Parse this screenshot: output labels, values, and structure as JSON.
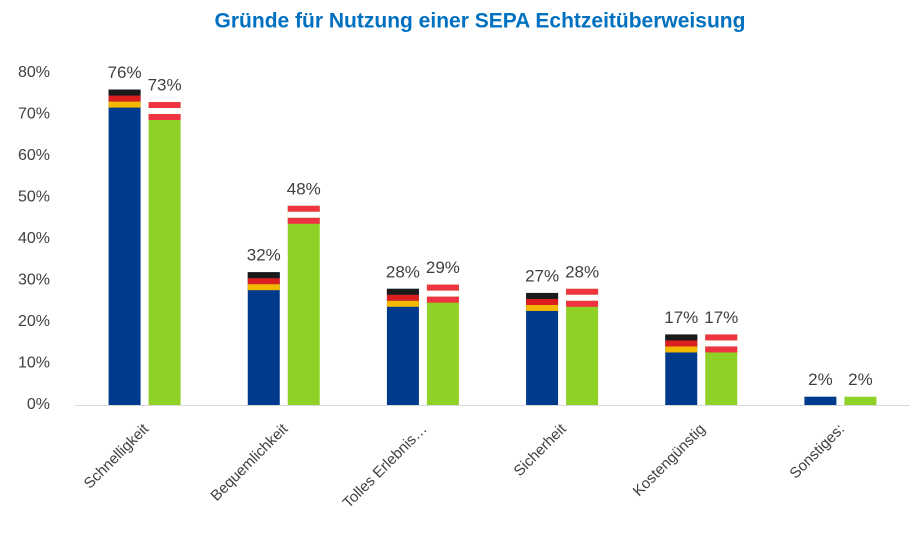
{
  "chart_data": {
    "type": "bar",
    "title": "Gründe für Nutzung einer SEPA Echtzeitüberweisung",
    "categories": [
      "Schnelligkeit",
      "Bequemlichkeit",
      "Tolles Erlebnis…",
      "Sicherheit",
      "Kostengünstig",
      "Sonstiges:"
    ],
    "series": [
      {
        "color": "#003a8c",
        "flag": [
          "#1a1a1a",
          "#dd1e1e",
          "#f5b800"
        ],
        "values": [
          76,
          32,
          28,
          27,
          17,
          2
        ],
        "value_labels": [
          "76%",
          "32%",
          "28%",
          "27%",
          "17%",
          "2%"
        ]
      },
      {
        "color": "#8fd126",
        "flag": [
          "#ef3340",
          "#ffffff",
          "#ef3340"
        ],
        "values": [
          73,
          48,
          29,
          28,
          17,
          2
        ],
        "value_labels": [
          "73%",
          "48%",
          "29%",
          "28%",
          "17%",
          "2%"
        ]
      }
    ],
    "ylim": [
      0,
      80
    ],
    "yticks": [
      {
        "value": 0,
        "label": "0%"
      },
      {
        "value": 10,
        "label": "10%"
      },
      {
        "value": 20,
        "label": "20%"
      },
      {
        "value": 30,
        "label": "30%"
      },
      {
        "value": 40,
        "label": "40%"
      },
      {
        "value": 50,
        "label": "50%"
      },
      {
        "value": 60,
        "label": "60%"
      },
      {
        "value": 70,
        "label": "70%"
      },
      {
        "value": 80,
        "label": "80%"
      }
    ],
    "grid": false
  }
}
